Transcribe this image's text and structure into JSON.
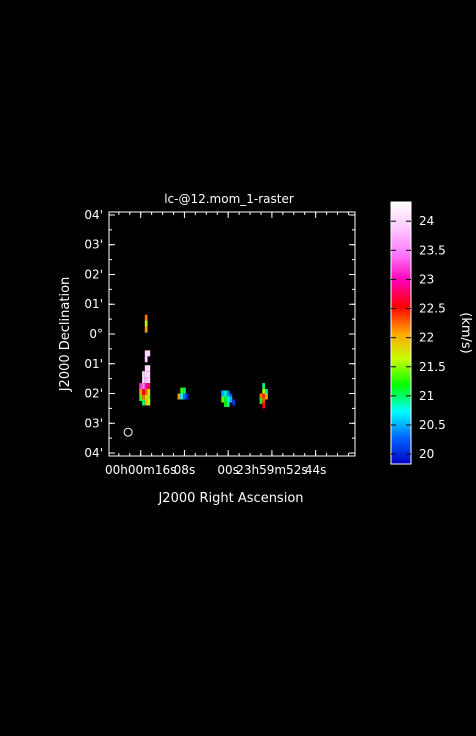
{
  "chart_data": {
    "type": "heatmap",
    "title": "lc-@12.mom_1-raster",
    "xlabel": "J2000 Right Ascension",
    "ylabel": "J2000 Declination",
    "colorbar_label": "(km/s)",
    "x_ticks": [
      {
        "label": "00h00m16s",
        "ra_s": 16
      },
      {
        "label": "08s",
        "ra_s": 8
      },
      {
        "label": "00s",
        "ra_s": 0
      },
      {
        "label": "23h59m52s",
        "ra_s": -8
      },
      {
        "label": "44s",
        "ra_s": -16
      }
    ],
    "y_ticks": [
      {
        "label": "04'",
        "dec": 4
      },
      {
        "label": "03'",
        "dec": 3
      },
      {
        "label": "02'",
        "dec": 2
      },
      {
        "label": "01'",
        "dec": 1
      },
      {
        "label": "0°",
        "dec": 0
      },
      {
        "label": "01'",
        "dec": -1
      },
      {
        "label": "02'",
        "dec": -2
      },
      {
        "label": "03'",
        "dec": -3
      },
      {
        "label": "04'",
        "dec": -4
      }
    ],
    "xlim": [
      21.8,
      -23.2
    ],
    "ylim": [
      -4.1,
      4.1
    ],
    "colorbar": {
      "ticks": [
        "20",
        "20.5",
        "21",
        "21.5",
        "22",
        "22.5",
        "23",
        "23.5",
        "24"
      ],
      "range": [
        19.83,
        24.33
      ],
      "colormap": [
        "#0000c8",
        "#0064ff",
        "#00ffff",
        "#00ff00",
        "#c8ff00",
        "#ffa500",
        "#ff0000",
        "#ff00b4",
        "#ff78ff",
        "#ffc8ff",
        "#ffffff"
      ]
    },
    "pixels": [
      {
        "ra": 15.0,
        "dec": 0.55,
        "v": 22.2
      },
      {
        "ra": 15.0,
        "dec": 0.35,
        "v": 21.7
      },
      {
        "ra": 15.0,
        "dec": 0.15,
        "v": 22.1
      },
      {
        "ra": 15.0,
        "dec": -0.65,
        "v": 24.0
      },
      {
        "ra": 14.5,
        "dec": -0.65,
        "v": 24.0
      },
      {
        "ra": 15.0,
        "dec": -0.85,
        "v": 24.0
      },
      {
        "ra": 15.0,
        "dec": -1.15,
        "v": 24.0
      },
      {
        "ra": 14.5,
        "dec": -1.15,
        "v": 24.0
      },
      {
        "ra": 15.0,
        "dec": -1.35,
        "v": 24.0
      },
      {
        "ra": 14.5,
        "dec": -1.35,
        "v": 24.0
      },
      {
        "ra": 15.0,
        "dec": -1.55,
        "v": 23.8
      },
      {
        "ra": 14.5,
        "dec": -1.55,
        "v": 24.0
      },
      {
        "ra": 15.5,
        "dec": -1.35,
        "v": 24.0
      },
      {
        "ra": 15.5,
        "dec": -1.55,
        "v": 24.0
      },
      {
        "ra": 15.0,
        "dec": -1.75,
        "v": 23.0
      },
      {
        "ra": 14.5,
        "dec": -1.75,
        "v": 22.7
      },
      {
        "ra": 15.5,
        "dec": -1.75,
        "v": 23.5
      },
      {
        "ra": 16.0,
        "dec": -1.75,
        "v": 23.2
      },
      {
        "ra": 15.0,
        "dec": -1.95,
        "v": 22.3
      },
      {
        "ra": 14.5,
        "dec": -1.95,
        "v": 21.8
      },
      {
        "ra": 15.5,
        "dec": -1.95,
        "v": 22.6
      },
      {
        "ra": 16.0,
        "dec": -1.95,
        "v": 22.1
      },
      {
        "ra": 15.0,
        "dec": -2.15,
        "v": 21.9
      },
      {
        "ra": 14.5,
        "dec": -2.15,
        "v": 21.5
      },
      {
        "ra": 15.5,
        "dec": -2.15,
        "v": 22.2
      },
      {
        "ra": 16.0,
        "dec": -2.15,
        "v": 21.3
      },
      {
        "ra": 15.0,
        "dec": -2.3,
        "v": 22.0
      },
      {
        "ra": 14.5,
        "dec": -2.3,
        "v": 21.6
      },
      {
        "ra": 15.5,
        "dec": -2.3,
        "v": 21.0
      },
      {
        "ra": 8.5,
        "dec": -1.9,
        "v": 21.3
      },
      {
        "ra": 8.0,
        "dec": -1.9,
        "v": 21.0
      },
      {
        "ra": 9.0,
        "dec": -2.1,
        "v": 22.1
      },
      {
        "ra": 8.5,
        "dec": -2.1,
        "v": 20.7
      },
      {
        "ra": 8.0,
        "dec": -2.1,
        "v": 20.3
      },
      {
        "ra": 7.5,
        "dec": -2.1,
        "v": 20.0
      },
      {
        "ra": 1.0,
        "dec": -2.0,
        "v": 20.5
      },
      {
        "ra": 0.5,
        "dec": -2.0,
        "v": 20.8
      },
      {
        "ra": 0.0,
        "dec": -2.0,
        "v": 20.4
      },
      {
        "ra": -0.5,
        "dec": -2.1,
        "v": 20.2
      },
      {
        "ra": 1.0,
        "dec": -2.2,
        "v": 21.4
      },
      {
        "ra": 0.5,
        "dec": -2.2,
        "v": 21.1
      },
      {
        "ra": 0.0,
        "dec": -2.2,
        "v": 20.8
      },
      {
        "ra": -0.5,
        "dec": -2.2,
        "v": 20.5
      },
      {
        "ra": -1.0,
        "dec": -2.3,
        "v": 20.1
      },
      {
        "ra": 0.5,
        "dec": -2.35,
        "v": 21.2
      },
      {
        "ra": 0.0,
        "dec": -2.35,
        "v": 20.9
      },
      {
        "ra": -6.5,
        "dec": -1.75,
        "v": 21.0
      },
      {
        "ra": -6.5,
        "dec": -1.95,
        "v": 21.6
      },
      {
        "ra": -7.0,
        "dec": -1.95,
        "v": 20.9
      },
      {
        "ra": -6.0,
        "dec": -2.1,
        "v": 22.2
      },
      {
        "ra": -6.5,
        "dec": -2.1,
        "v": 22.4
      },
      {
        "ra": -7.0,
        "dec": -2.1,
        "v": 22.0
      },
      {
        "ra": -6.0,
        "dec": -2.25,
        "v": 21.2
      },
      {
        "ra": -6.5,
        "dec": -2.25,
        "v": 22.3
      },
      {
        "ra": -6.5,
        "dec": -2.4,
        "v": 22.6
      }
    ],
    "beam": {
      "ra": 18.3,
      "dec": -3.3
    }
  }
}
